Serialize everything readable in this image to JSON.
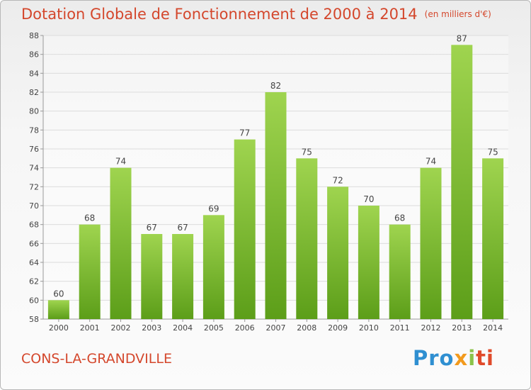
{
  "header": {
    "title": "Dotation Globale de Fonctionnement de 2000 à 2014",
    "subtitle": "(en milliers d'€)"
  },
  "footer": {
    "place": "CONS-LA-GRANDVILLE",
    "logo": {
      "part1": "Pro",
      "part2": "x",
      "part3": "i",
      "part4": "ti"
    }
  },
  "colors": {
    "bar_top": "#9fd44f",
    "bar_bottom": "#5c9e19",
    "title": "#d4472c",
    "grid": "#dcdcdc"
  },
  "chart_data": {
    "type": "bar",
    "categories": [
      "2000",
      "2001",
      "2002",
      "2003",
      "2004",
      "2005",
      "2006",
      "2007",
      "2008",
      "2009",
      "2010",
      "2011",
      "2012",
      "2013",
      "2014"
    ],
    "values": [
      60,
      68,
      74,
      67,
      67,
      69,
      77,
      82,
      75,
      72,
      70,
      68,
      74,
      87,
      75
    ],
    "yticks": [
      58,
      60,
      62,
      64,
      66,
      68,
      70,
      72,
      74,
      76,
      78,
      80,
      82,
      84,
      86,
      88
    ],
    "ylim": [
      58,
      88
    ],
    "grid": true,
    "data_labels": true
  }
}
